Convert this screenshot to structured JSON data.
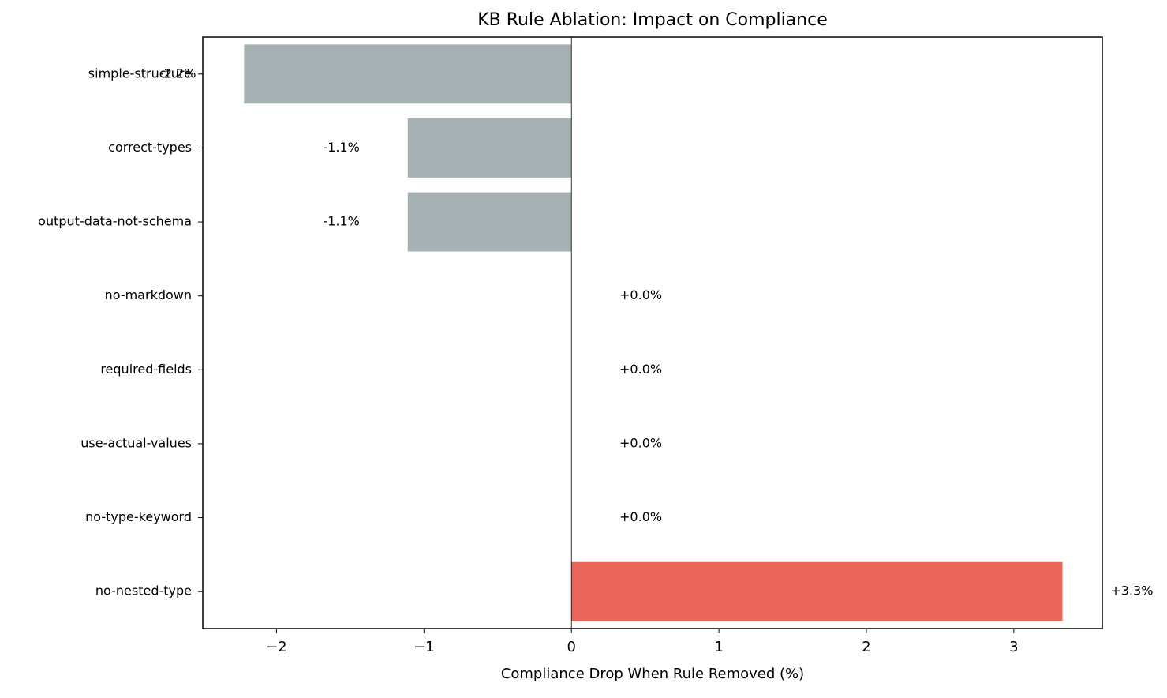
{
  "chart_data": {
    "type": "barh",
    "title": "KB Rule Ablation: Impact on Compliance",
    "x_label": "Compliance Drop When Rule Removed (%)",
    "categories": [
      "simple-structure",
      "correct-types",
      "output-data-not-schema",
      "no-markdown",
      "required-fields",
      "use-actual-values",
      "no-type-keyword",
      "no-nested-type"
    ],
    "values": [
      -2.22,
      -1.11,
      -1.11,
      0,
      0,
      0,
      0,
      3.33
    ],
    "value_labels": [
      "-2.2%",
      "-1.1%",
      "-1.1%",
      "+0.0%",
      "+0.0%",
      "+0.0%",
      "+0.0%",
      "+3.3%"
    ],
    "colors": [
      "#a5b1b2",
      "#a5b1b2",
      "#a5b1b2",
      "#a5b1b2",
      "#a5b1b2",
      "#a5b1b2",
      "#a5b1b2",
      "#eb675a"
    ],
    "xlim": [
      -2.5,
      3.6
    ],
    "xticks": [
      {
        "value": -2,
        "label": "−2"
      },
      {
        "value": -1,
        "label": "−1"
      },
      0,
      1,
      2,
      3
    ],
    "zero_line": true
  }
}
